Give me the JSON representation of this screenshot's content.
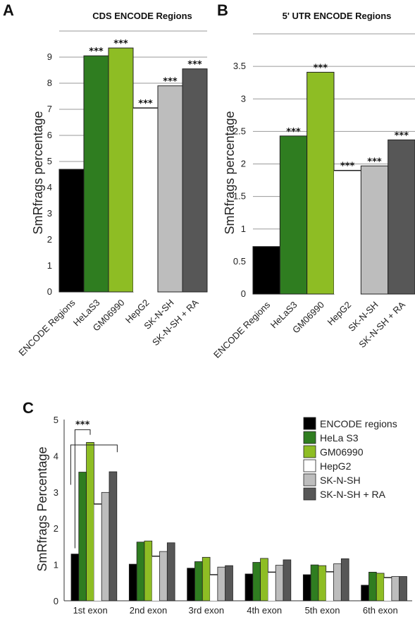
{
  "chart_data": [
    {
      "panel": "A",
      "type": "bar",
      "title": "CDS ENCODE Regions",
      "ylabel": "SmRfrags percentage",
      "xlabel": "",
      "ylim": [
        0,
        10
      ],
      "yticks": [
        0,
        1,
        2,
        3,
        4,
        5,
        6,
        7,
        8,
        9
      ],
      "grid": true,
      "categories": [
        "ENCODE Regions",
        "HeLaS3",
        "GM06990",
        "HepG2",
        "SK-N-SH",
        "SK-N-SH + RA"
      ],
      "values": [
        4.7,
        9.05,
        9.35,
        7.05,
        7.9,
        8.55
      ],
      "annotations": [
        "",
        "***",
        "***",
        "***",
        "***",
        "***"
      ],
      "colors": [
        "#000000",
        "#2f7d20",
        "#8ebd24",
        "#ffffff",
        "#bdbdbd",
        "#575757"
      ]
    },
    {
      "panel": "B",
      "type": "bar",
      "title": "5' UTR ENCODE Regions",
      "ylabel": "SmRfrags percentage",
      "xlabel": "",
      "ylim": [
        0,
        4
      ],
      "yticks": [
        0,
        0.5,
        1,
        1.5,
        2,
        2.5,
        3,
        3.5
      ],
      "grid": true,
      "categories": [
        "ENCODE Regions",
        "HeLaS3",
        "GM06990",
        "HepG2",
        "SK-N-SH",
        "SK-N-SH + RA"
      ],
      "values": [
        0.73,
        2.43,
        3.41,
        1.9,
        1.97,
        2.37
      ],
      "annotations": [
        "",
        "***",
        "***",
        "***",
        "***",
        "***"
      ],
      "colors": [
        "#000000",
        "#2f7d20",
        "#8ebd24",
        "#ffffff",
        "#bdbdbd",
        "#575757"
      ]
    },
    {
      "panel": "C",
      "type": "bar",
      "title": "",
      "ylabel": "SmRfrags Percentage",
      "xlabel": "",
      "ylim": [
        0,
        5
      ],
      "yticks": [
        0,
        1,
        2,
        3,
        4,
        5
      ],
      "grid": false,
      "legend_position": "top-right",
      "categories": [
        "1st exon",
        "2nd exon",
        "3rd exon",
        "4th exon",
        "5th exon",
        "6th exon"
      ],
      "series": [
        {
          "name": "ENCODE regions",
          "color": "#000000",
          "values": [
            1.29,
            1.01,
            0.9,
            0.74,
            0.72,
            0.43
          ]
        },
        {
          "name": "HeLa S3",
          "color": "#2f7d20",
          "values": [
            3.55,
            1.62,
            1.08,
            1.06,
            0.99,
            0.79
          ]
        },
        {
          "name": "GM06990",
          "color": "#8ebd24",
          "values": [
            4.37,
            1.65,
            1.2,
            1.17,
            0.97,
            0.76
          ]
        },
        {
          "name": "HepG2",
          "color": "#ffffff",
          "values": [
            2.67,
            1.23,
            0.72,
            0.79,
            0.8,
            0.64
          ]
        },
        {
          "name": "SK-N-SH",
          "color": "#bdbdbd",
          "values": [
            2.99,
            1.36,
            0.93,
            0.98,
            1.02,
            0.67
          ]
        },
        {
          "name": "SK-N-SH +  RA",
          "color": "#575757",
          "values": [
            3.56,
            1.6,
            0.97,
            1.13,
            1.16,
            0.67
          ]
        }
      ],
      "annotations": [
        {
          "text": "***",
          "category": "1st exon"
        }
      ]
    }
  ]
}
